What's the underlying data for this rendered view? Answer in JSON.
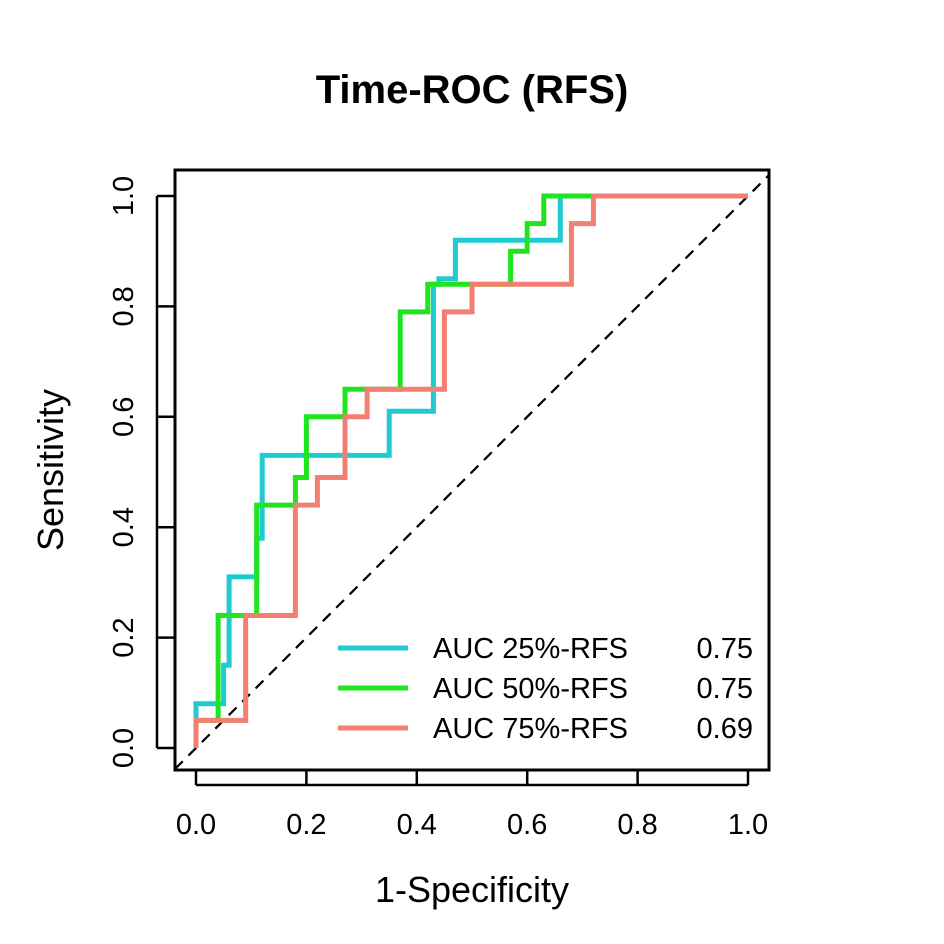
{
  "chart_data": {
    "type": "line",
    "title": "Time-ROC (RFS)",
    "xlabel": "1-Specificity",
    "ylabel": "Sensitivity",
    "xlim": [
      0,
      1
    ],
    "ylim": [
      0,
      1
    ],
    "x_ticks": [
      "0.0",
      "0.2",
      "0.4",
      "0.6",
      "0.8",
      "1.0"
    ],
    "y_ticks": [
      "0.0",
      "0.2",
      "0.4",
      "0.6",
      "0.8",
      "1.0"
    ],
    "grid": false,
    "legend_position": "bottom-right",
    "reference_line": {
      "from": [
        0,
        0
      ],
      "to": [
        1,
        1
      ],
      "style": "dashed",
      "color": "#000000"
    },
    "series": [
      {
        "name": "AUC 25%-RFS",
        "auc": "0.75",
        "color": "#1FCBD1",
        "points": [
          [
            0.0,
            0.0
          ],
          [
            0.0,
            0.08
          ],
          [
            0.05,
            0.08
          ],
          [
            0.05,
            0.15
          ],
          [
            0.06,
            0.15
          ],
          [
            0.06,
            0.31
          ],
          [
            0.11,
            0.31
          ],
          [
            0.11,
            0.38
          ],
          [
            0.12,
            0.38
          ],
          [
            0.12,
            0.53
          ],
          [
            0.35,
            0.53
          ],
          [
            0.35,
            0.61
          ],
          [
            0.43,
            0.61
          ],
          [
            0.43,
            0.84
          ],
          [
            0.44,
            0.84
          ],
          [
            0.44,
            0.85
          ],
          [
            0.47,
            0.85
          ],
          [
            0.47,
            0.92
          ],
          [
            0.66,
            0.92
          ],
          [
            0.66,
            1.0
          ],
          [
            1.0,
            1.0
          ]
        ]
      },
      {
        "name": "AUC 50%-RFS",
        "auc": "0.75",
        "color": "#1FE51F",
        "points": [
          [
            0.0,
            0.0
          ],
          [
            0.0,
            0.05
          ],
          [
            0.04,
            0.05
          ],
          [
            0.04,
            0.24
          ],
          [
            0.11,
            0.24
          ],
          [
            0.11,
            0.44
          ],
          [
            0.18,
            0.44
          ],
          [
            0.18,
            0.49
          ],
          [
            0.2,
            0.49
          ],
          [
            0.2,
            0.6
          ],
          [
            0.27,
            0.6
          ],
          [
            0.27,
            0.65
          ],
          [
            0.37,
            0.65
          ],
          [
            0.37,
            0.79
          ],
          [
            0.42,
            0.79
          ],
          [
            0.42,
            0.84
          ],
          [
            0.57,
            0.84
          ],
          [
            0.57,
            0.9
          ],
          [
            0.6,
            0.9
          ],
          [
            0.6,
            0.95
          ],
          [
            0.63,
            0.95
          ],
          [
            0.63,
            1.0
          ],
          [
            1.0,
            1.0
          ]
        ]
      },
      {
        "name": "AUC 75%-RFS",
        "auc": "0.69",
        "color": "#F17F72",
        "points": [
          [
            0.0,
            0.0
          ],
          [
            0.0,
            0.05
          ],
          [
            0.09,
            0.05
          ],
          [
            0.09,
            0.24
          ],
          [
            0.18,
            0.24
          ],
          [
            0.18,
            0.44
          ],
          [
            0.22,
            0.44
          ],
          [
            0.22,
            0.49
          ],
          [
            0.27,
            0.49
          ],
          [
            0.27,
            0.6
          ],
          [
            0.31,
            0.6
          ],
          [
            0.31,
            0.65
          ],
          [
            0.45,
            0.65
          ],
          [
            0.45,
            0.79
          ],
          [
            0.5,
            0.79
          ],
          [
            0.5,
            0.84
          ],
          [
            0.68,
            0.84
          ],
          [
            0.68,
            0.95
          ],
          [
            0.72,
            0.95
          ],
          [
            0.72,
            1.0
          ],
          [
            1.0,
            1.0
          ]
        ]
      }
    ]
  }
}
